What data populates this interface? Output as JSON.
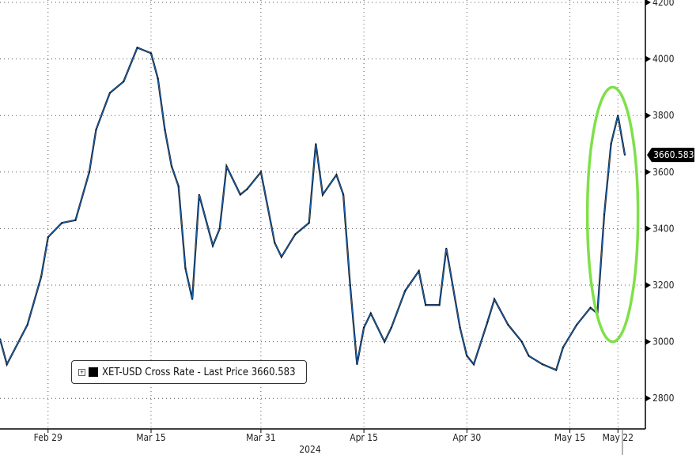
{
  "chart_data": {
    "type": "line",
    "title": "",
    "xlabel": "2024",
    "ylabel": "",
    "ylim": [
      2700,
      4200
    ],
    "yticks": [
      2800,
      3000,
      3200,
      3400,
      3600,
      3800,
      4000,
      4200
    ],
    "xticks": [
      {
        "date": "2024-02-29",
        "label": "Feb 29"
      },
      {
        "date": "2024-03-15",
        "label": "Mar 15"
      },
      {
        "date": "2024-03-31",
        "label": "Mar 31"
      },
      {
        "date": "2024-04-15",
        "label": "Apr 15"
      },
      {
        "date": "2024-04-30",
        "label": "Apr 30"
      },
      {
        "date": "2024-05-15",
        "label": "May 15"
      },
      {
        "date": "2024-05-22",
        "label": "May 22"
      }
    ],
    "xlim": [
      "2024-02-22",
      "2024-05-23"
    ],
    "grid": true,
    "legend_placement": "bottom-left",
    "series": [
      {
        "name": "XET-USD Cross Rate - Last Price 3660.583",
        "color": "#1b64b4",
        "points": [
          [
            "2024-02-22",
            3010
          ],
          [
            "2024-02-23",
            2920
          ],
          [
            "2024-02-26",
            3060
          ],
          [
            "2024-02-28",
            3230
          ],
          [
            "2024-02-29",
            3370
          ],
          [
            "2024-03-02",
            3420
          ],
          [
            "2024-03-04",
            3430
          ],
          [
            "2024-03-06",
            3600
          ],
          [
            "2024-03-07",
            3750
          ],
          [
            "2024-03-09",
            3880
          ],
          [
            "2024-03-11",
            3920
          ],
          [
            "2024-03-13",
            4040
          ],
          [
            "2024-03-15",
            4020
          ],
          [
            "2024-03-16",
            3930
          ],
          [
            "2024-03-17",
            3750
          ],
          [
            "2024-03-18",
            3620
          ],
          [
            "2024-03-19",
            3550
          ],
          [
            "2024-03-20",
            3260
          ],
          [
            "2024-03-21",
            3150
          ],
          [
            "2024-03-22",
            3520
          ],
          [
            "2024-03-24",
            3340
          ],
          [
            "2024-03-25",
            3400
          ],
          [
            "2024-03-26",
            3620
          ],
          [
            "2024-03-28",
            3520
          ],
          [
            "2024-03-29",
            3540
          ],
          [
            "2024-03-31",
            3600
          ],
          [
            "2024-04-02",
            3350
          ],
          [
            "2024-04-03",
            3300
          ],
          [
            "2024-04-05",
            3380
          ],
          [
            "2024-04-07",
            3420
          ],
          [
            "2024-04-08",
            3700
          ],
          [
            "2024-04-09",
            3520
          ],
          [
            "2024-04-11",
            3590
          ],
          [
            "2024-04-12",
            3520
          ],
          [
            "2024-04-13",
            3200
          ],
          [
            "2024-04-14",
            2920
          ],
          [
            "2024-04-15",
            3050
          ],
          [
            "2024-04-16",
            3100
          ],
          [
            "2024-04-18",
            3000
          ],
          [
            "2024-04-19",
            3050
          ],
          [
            "2024-04-21",
            3180
          ],
          [
            "2024-04-23",
            3250
          ],
          [
            "2024-04-24",
            3130
          ],
          [
            "2024-04-26",
            3130
          ],
          [
            "2024-04-27",
            3330
          ],
          [
            "2024-04-29",
            3050
          ],
          [
            "2024-04-30",
            2950
          ],
          [
            "2024-05-01",
            2920
          ],
          [
            "2024-05-03",
            3070
          ],
          [
            "2024-05-04",
            3150
          ],
          [
            "2024-05-06",
            3060
          ],
          [
            "2024-05-08",
            3000
          ],
          [
            "2024-05-09",
            2950
          ],
          [
            "2024-05-11",
            2920
          ],
          [
            "2024-05-13",
            2900
          ],
          [
            "2024-05-14",
            2980
          ],
          [
            "2024-05-16",
            3060
          ],
          [
            "2024-05-18",
            3120
          ],
          [
            "2024-05-19",
            3100
          ],
          [
            "2024-05-20",
            3450
          ],
          [
            "2024-05-21",
            3700
          ],
          [
            "2024-05-22",
            3800
          ],
          [
            "2024-05-23",
            3660.583
          ]
        ]
      }
    ],
    "last_price_label": "3660.583",
    "annotation": {
      "type": "ellipse",
      "color": "#7fe04a",
      "around": [
        "2024-05-19",
        "2024-05-23"
      ],
      "value_range": [
        3000,
        3900
      ]
    }
  },
  "legend": {
    "label": "XET-USD Cross Rate - Last Price 3660.583"
  }
}
